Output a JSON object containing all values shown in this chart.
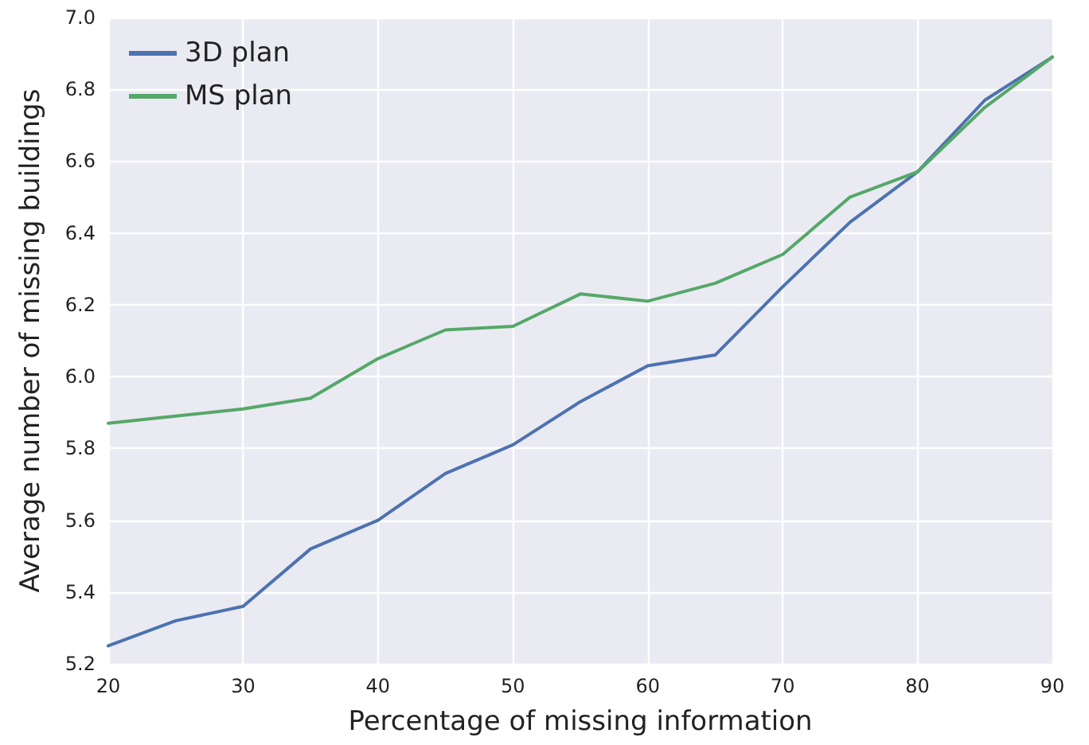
{
  "chart_data": {
    "type": "line",
    "xlabel": "Percentage of missing information",
    "ylabel": "Average number of missing buildings",
    "x": [
      20,
      25,
      30,
      35,
      40,
      45,
      50,
      55,
      60,
      65,
      70,
      75,
      80,
      85,
      90
    ],
    "series": [
      {
        "name": "3D plan",
        "color": "#4c72b0",
        "values": [
          5.25,
          5.32,
          5.36,
          5.52,
          5.6,
          5.73,
          5.81,
          5.93,
          6.03,
          6.06,
          6.25,
          6.43,
          6.57,
          6.77,
          6.89
        ]
      },
      {
        "name": "MS plan",
        "color": "#55a868",
        "values": [
          5.87,
          5.89,
          5.91,
          5.94,
          6.05,
          6.13,
          6.14,
          6.23,
          6.21,
          6.26,
          6.34,
          6.5,
          6.57,
          6.75,
          6.89
        ]
      }
    ],
    "xlim": [
      20,
      90
    ],
    "xticks": [
      20,
      30,
      40,
      50,
      60,
      70,
      80,
      90
    ],
    "ylim": [
      5.2,
      7.0
    ],
    "yticks": [
      {
        "value": 5.2,
        "label": "5.2"
      },
      {
        "value": 5.4,
        "label": "5.4"
      },
      {
        "value": 5.6,
        "label": "5.6"
      },
      {
        "value": 5.8,
        "label": "5.8"
      },
      {
        "value": 6.0,
        "label": "6.0"
      },
      {
        "value": 6.2,
        "label": "6.2"
      },
      {
        "value": 6.4,
        "label": "6.4"
      },
      {
        "value": 6.6,
        "label": "6.6"
      },
      {
        "value": 6.8,
        "label": "6.8"
      },
      {
        "value": 7.0,
        "label": "7.0"
      }
    ],
    "grid": true,
    "legend": "top left",
    "marker": "none",
    "line_style": "solid"
  }
}
